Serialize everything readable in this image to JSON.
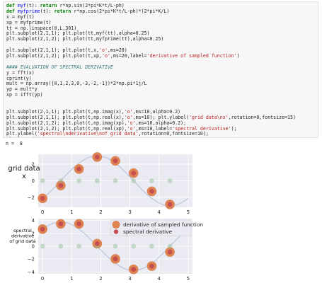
{
  "code": {
    "lines": [
      [
        {
          "t": "def ",
          "c": "kw"
        },
        {
          "t": "myf",
          "c": "fn"
        },
        {
          "t": "(t): "
        },
        {
          "t": "return ",
          "c": "kw"
        },
        {
          "t": "r*np.sin(2*pi*K*t/L-ph)"
        }
      ],
      [
        {
          "t": "def ",
          "c": "kw"
        },
        {
          "t": "myfprime",
          "c": "fn"
        },
        {
          "t": "(t): "
        },
        {
          "t": "return ",
          "c": "kw"
        },
        {
          "t": "r*np.cos(2*pi*K*t/L-ph)*(2*pi*K/L)"
        }
      ],
      [
        {
          "t": "x = myf(t)"
        }
      ],
      [
        {
          "t": "xp = myfprime(t)"
        }
      ],
      [
        {
          "t": "tt = np.linspace(0,L,301)"
        }
      ],
      [
        {
          "t": "plt.subplot(2,1,1); plt.plot(tt,myf(tt),alpha=0.25)"
        }
      ],
      [
        {
          "t": "plt.subplot(2,1,2); plt.plot(tt,myfprime(tt),alpha=0.25)"
        }
      ],
      [
        {
          "t": ""
        }
      ],
      [
        {
          "t": "plt.subplot(2,1,1); plt.plot(t,x,"
        },
        {
          "t": "'o'",
          "c": "st"
        },
        {
          "t": ",ms=20)"
        }
      ],
      [
        {
          "t": "plt.subplot(2,1,2); plt.plot(t,xp,"
        },
        {
          "t": "'o'",
          "c": "st"
        },
        {
          "t": ",ms=20,label="
        },
        {
          "t": "'derivative of sampled function'",
          "c": "st"
        },
        {
          "t": ")"
        }
      ],
      [
        {
          "t": ""
        }
      ],
      [
        {
          "t": "#### EVALUATION OF SPECTRAL DERIVATIVE",
          "c": "cm"
        }
      ],
      [
        {
          "t": "y = fft(x)"
        }
      ],
      [
        {
          "t": "cprint(y)"
        }
      ],
      [
        {
          "t": "mult = np.array([0,1,2,3,0,-3,-2,-1])*2*np.pi*1j/L"
        }
      ],
      [
        {
          "t": "yp = mult*y"
        }
      ],
      [
        {
          "t": "xp = ifft(yp)"
        }
      ],
      [
        {
          "t": ""
        }
      ],
      [
        {
          "t": ""
        }
      ],
      [
        {
          "t": "plt.subplot(2,1,1); plt.plot(t,np.imag(x),"
        },
        {
          "t": "'o'",
          "c": "st"
        },
        {
          "t": ",ms=10,alpha=0.2)"
        }
      ],
      [
        {
          "t": "plt.subplot(2,1,1); plt.plot(t,np.real(x),"
        },
        {
          "t": "'o'",
          "c": "st"
        },
        {
          "t": ",ms=10); plt.ylabel("
        },
        {
          "t": "'grid data\\nx'",
          "c": "st"
        },
        {
          "t": ",rotation=0,fontsize=15)"
        }
      ],
      [
        {
          "t": "plt.subplot(2,1,2); plt.plot(t,np.imag(xp),"
        },
        {
          "t": "'o'",
          "c": "st"
        },
        {
          "t": ",ms=10,alpha=0.2);"
        }
      ],
      [
        {
          "t": "plt.subplot(2,1,2); plt.plot(t,np.real(xp),"
        },
        {
          "t": "'o'",
          "c": "st"
        },
        {
          "t": ",ms=10,label="
        },
        {
          "t": "'spectral derivative'",
          "c": "st"
        },
        {
          "t": ");"
        }
      ],
      [
        {
          "t": "plt.ylabel("
        },
        {
          "t": "'spectral\\nderivative\\nof grid data'",
          "c": "st"
        },
        {
          "t": ",rotation=0,fontsize=10);"
        }
      ],
      [
        {
          "t": "plt.legend();"
        }
      ]
    ]
  },
  "output": {
    "text": "n =  8"
  },
  "chart_data": [
    {
      "type": "scatter",
      "ylabel": "grid data\nx",
      "xlim": [
        -0.15,
        5.15
      ],
      "ylim": [
        -3.2,
        3.2
      ],
      "xticks": [
        0,
        1,
        2,
        3,
        4,
        5
      ],
      "xtick_labels": [
        "0",
        "1",
        "2",
        "3",
        "4",
        "5"
      ],
      "yticks": [
        2,
        0,
        -2
      ],
      "ytick_labels": [
        "2",
        "0",
        "−2"
      ],
      "curve": {
        "amp": 3,
        "phase": 0.785,
        "period": 5,
        "color": "#4c72b0",
        "alpha": 0.3
      },
      "sample_t": [
        0,
        0.625,
        1.25,
        1.875,
        2.5,
        3.125,
        3.75,
        4.375
      ],
      "big_markers": [
        -2.12,
        -0.57,
        1.41,
        2.86,
        2.4,
        0.92,
        -1.27,
        -2.85
      ],
      "small_real": [
        -2.12,
        -0.57,
        1.41,
        2.86,
        2.4,
        0.92,
        -1.27,
        -2.85
      ],
      "small_imag": [
        0,
        0,
        0,
        0,
        0,
        0,
        0,
        0
      ],
      "colors": {
        "big": "#dd8452",
        "real": "#c44e52",
        "imag": "#8fbc8f"
      }
    },
    {
      "type": "scatter",
      "ylabel": "spectral\nderivative\nof grid data",
      "xlim": [
        -0.15,
        5.15
      ],
      "ylim": [
        -4.3,
        4.3
      ],
      "xticks": [
        0,
        1,
        2,
        3,
        4,
        5
      ],
      "xtick_labels": [
        "0",
        "1",
        "2",
        "3",
        "4",
        "5"
      ],
      "yticks": [
        4,
        2,
        0,
        -2,
        -4
      ],
      "ytick_labels": [
        "4",
        "2",
        "0",
        "−2",
        "−4"
      ],
      "curve": {
        "amp": 3.77,
        "phase": 0.785,
        "period": 5,
        "color": "#4c72b0",
        "alpha": 0.3
      },
      "sample_t": [
        0,
        0.625,
        1.25,
        1.875,
        2.5,
        3.125,
        3.75,
        4.375
      ],
      "big_markers": [
        2.67,
        3.48,
        3.48,
        0.4,
        -1.98,
        -3.6,
        -3.1,
        -0.9
      ],
      "small_real": [
        2.67,
        3.48,
        3.48,
        0.4,
        -1.98,
        -3.6,
        -3.1,
        -0.9
      ],
      "small_imag": [
        0,
        0,
        0,
        0,
        0,
        0,
        0,
        0
      ],
      "colors": {
        "big": "#dd8452",
        "real": "#c44e52",
        "imag": "#8fbc8f"
      },
      "legend": {
        "placement": "top-right",
        "entries": [
          "derivative of sampled function",
          "spectral derivative"
        ]
      }
    }
  ]
}
